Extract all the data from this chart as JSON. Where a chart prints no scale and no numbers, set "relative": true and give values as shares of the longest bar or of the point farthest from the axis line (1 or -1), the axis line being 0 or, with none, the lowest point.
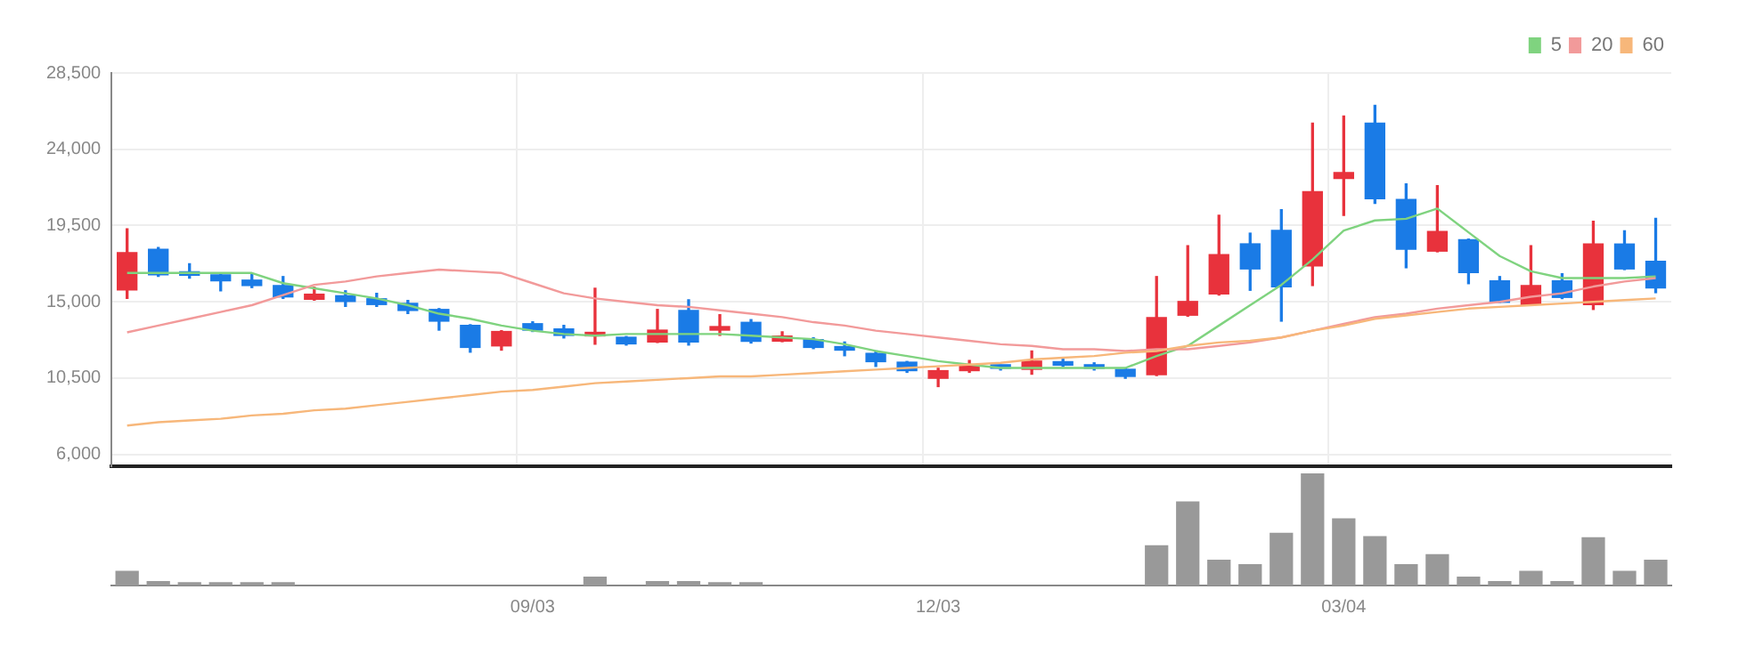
{
  "chart_data": [
    {
      "type": "candlestick",
      "categories": [
        null,
        null,
        null,
        null,
        null,
        null,
        null,
        null,
        null,
        null,
        null,
        null,
        null,
        null,
        null,
        null,
        null,
        null,
        null,
        null,
        null,
        null,
        null,
        null,
        null,
        null,
        null,
        null,
        null,
        null,
        null,
        null,
        null,
        null,
        null,
        null,
        null,
        null,
        null,
        null,
        null,
        null,
        null,
        null,
        null,
        null,
        null,
        null,
        null,
        null
      ],
      "ohlc": [
        [
          15700,
          19300,
          15200,
          17900
        ],
        [
          18100,
          18200,
          16500,
          16600
        ],
        [
          16700,
          17250,
          16400,
          16570
        ],
        [
          16590,
          16650,
          15650,
          16240
        ],
        [
          16280,
          16660,
          15840,
          15960
        ],
        [
          15960,
          16490,
          15200,
          15290
        ],
        [
          15150,
          15860,
          15100,
          15450
        ],
        [
          15360,
          15650,
          14730,
          15020
        ],
        [
          15180,
          15500,
          14730,
          14840
        ],
        [
          14910,
          15080,
          14310,
          14490
        ],
        [
          14550,
          14600,
          13330,
          13860
        ],
        [
          13610,
          13650,
          12030,
          12310
        ],
        [
          12400,
          13300,
          12150,
          13250
        ],
        [
          13710,
          13820,
          13250,
          13330
        ],
        [
          13400,
          13610,
          12870,
          13020
        ],
        [
          12990,
          15800,
          12500,
          13080
        ],
        [
          12910,
          12950,
          12450,
          12520
        ],
        [
          12630,
          14550,
          12600,
          13330
        ],
        [
          14490,
          15120,
          12450,
          12630
        ],
        [
          13330,
          14240,
          13020,
          13470
        ],
        [
          13790,
          13950,
          12570,
          12670
        ],
        [
          12680,
          13230,
          12650,
          12980
        ],
        [
          12770,
          12880,
          12240,
          12310
        ],
        [
          12300,
          12630,
          11820,
          12150
        ],
        [
          11960,
          12100,
          11190,
          11470
        ],
        [
          11440,
          11480,
          10840,
          10940
        ],
        [
          10490,
          11080,
          10000,
          10940
        ],
        [
          10940,
          11540,
          10840,
          11260
        ],
        [
          11190,
          11260,
          10980,
          11080
        ],
        [
          11020,
          12100,
          10730,
          11500
        ],
        [
          11470,
          11680,
          11190,
          11260
        ],
        [
          11230,
          11400,
          10980,
          11080
        ],
        [
          11020,
          11050,
          10490,
          10600
        ],
        [
          10700,
          16490,
          10650,
          14070
        ],
        [
          14210,
          18310,
          14150,
          15020
        ],
        [
          15470,
          20100,
          15400,
          17780
        ],
        [
          18420,
          19050,
          15680,
          16940
        ],
        [
          19220,
          20440,
          13860,
          15890
        ],
        [
          17120,
          25540,
          15960,
          21500
        ],
        [
          22270,
          25960,
          20100,
          22620
        ],
        [
          25540,
          26590,
          20800,
          21080
        ],
        [
          21040,
          21960,
          17010,
          18100
        ],
        [
          17990,
          21850,
          17950,
          19150
        ],
        [
          18660,
          18700,
          16070,
          16730
        ],
        [
          16240,
          16490,
          14970,
          14970
        ],
        [
          14840,
          18310,
          14800,
          15960
        ],
        [
          16240,
          16660,
          15190,
          15260
        ],
        [
          14840,
          19750,
          14550,
          18410
        ],
        [
          18410,
          19190,
          16900,
          16940
        ],
        [
          17390,
          19920,
          15540,
          15820
        ]
      ],
      "colors": [
        "#e8323c",
        "#1a7be6",
        "#1a7be6",
        "#1a7be6",
        "#1a7be6",
        "#1a7be6",
        "#e8323c",
        "#1a7be6",
        "#1a7be6",
        "#1a7be6",
        "#1a7be6",
        "#1a7be6",
        "#e8323c",
        "#1a7be6",
        "#1a7be6",
        "#e8323c",
        "#1a7be6",
        "#e8323c",
        "#1a7be6",
        "#e8323c",
        "#1a7be6",
        "#e8323c",
        "#1a7be6",
        "#1a7be6",
        "#1a7be6",
        "#1a7be6",
        "#e8323c",
        "#e8323c",
        "#1a7be6",
        "#e8323c",
        "#1a7be6",
        "#1a7be6",
        "#1a7be6",
        "#e8323c",
        "#e8323c",
        "#e8323c",
        "#1a7be6",
        "#1a7be6",
        "#e8323c",
        "#e8323c",
        "#1a7be6",
        "#1a7be6",
        "#e8323c",
        "#1a7be6",
        "#1a7be6",
        "#e8323c",
        "#1a7be6",
        "#e8323c",
        "#1a7be6",
        "#1a7be6"
      ],
      "series": [
        {
          "name": "5",
          "type": "line",
          "color": "#7fd37f",
          "values": [
            16700,
            16700,
            16700,
            16700,
            16700,
            16100,
            15800,
            15500,
            15200,
            14800,
            14300,
            14000,
            13600,
            13300,
            13100,
            13000,
            13100,
            13100,
            13100,
            13100,
            13000,
            12900,
            12800,
            12500,
            12100,
            11800,
            11500,
            11300,
            11100,
            11100,
            11100,
            11100,
            11100,
            11800,
            12400,
            13600,
            14800,
            16000,
            17500,
            19200,
            19800,
            19900,
            20500,
            19100,
            17700,
            16800,
            16400,
            16400,
            16400,
            16500
          ]
        },
        {
          "name": "20",
          "type": "line",
          "color": "#f29a9a",
          "values": [
            13200,
            13600,
            14000,
            14400,
            14800,
            15400,
            16000,
            16200,
            16500,
            16700,
            16900,
            16800,
            16700,
            16100,
            15500,
            15200,
            15000,
            14800,
            14700,
            14500,
            14300,
            14100,
            13800,
            13600,
            13300,
            13100,
            12900,
            12700,
            12500,
            12400,
            12200,
            12200,
            12100,
            12200,
            12200,
            12400,
            12600,
            12900,
            13300,
            13700,
            14100,
            14300,
            14600,
            14800,
            15000,
            15300,
            15500,
            15900,
            16200,
            16400
          ]
        },
        {
          "name": "60",
          "type": "line",
          "color": "#f7b77a",
          "values": [
            7700,
            7900,
            8000,
            8100,
            8300,
            8400,
            8600,
            8700,
            8900,
            9100,
            9300,
            9500,
            9700,
            9800,
            10000,
            10200,
            10300,
            10400,
            10500,
            10600,
            10600,
            10700,
            10800,
            10900,
            11000,
            11100,
            11200,
            11300,
            11400,
            11600,
            11700,
            11800,
            12000,
            12100,
            12400,
            12600,
            12700,
            12900,
            13300,
            13600,
            14000,
            14200,
            14400,
            14600,
            14700,
            14800,
            14900,
            15000,
            15100,
            15200
          ]
        }
      ],
      "ylim": [
        5300,
        28500
      ],
      "yticks": [
        {
          "value": 6000,
          "label": "6,000"
        },
        {
          "value": 10500,
          "label": "10,500"
        },
        {
          "value": 15000,
          "label": "15,000"
        },
        {
          "value": 19500,
          "label": "19,500"
        },
        {
          "value": 24000,
          "label": "24,000"
        },
        {
          "value": 28500,
          "label": "28,500"
        }
      ],
      "grid": true,
      "legend": "top right",
      "tick_labels": "y",
      "marker": "none"
    },
    {
      "type": "bar",
      "categories": [
        null,
        null,
        null,
        null,
        null,
        null,
        null,
        null,
        null,
        null,
        null,
        null,
        null,
        "09/03",
        null,
        null,
        null,
        null,
        null,
        null,
        null,
        null,
        null,
        null,
        null,
        null,
        "12/03",
        null,
        null,
        null,
        null,
        null,
        null,
        null,
        null,
        null,
        null,
        null,
        null,
        "03/04",
        null,
        null,
        null,
        null,
        null,
        null,
        null,
        null,
        null,
        null
      ],
      "values": [
        0.13,
        0.04,
        0.03,
        0.03,
        0.03,
        0.03,
        0,
        0,
        0,
        0,
        0,
        0,
        0,
        0,
        0,
        0.08,
        0,
        0.04,
        0.04,
        0.03,
        0.03,
        0,
        0,
        0,
        0,
        0,
        0,
        0,
        0,
        0,
        0,
        0,
        0,
        0.36,
        0.75,
        0.23,
        0.19,
        0.47,
        1,
        0.6,
        0.44,
        0.19,
        0.28,
        0.08,
        0.04,
        0.13,
        0.04,
        0.43,
        0.13,
        0.23
      ],
      "color": "#999999",
      "relative": true,
      "tick_labels": "x"
    }
  ]
}
